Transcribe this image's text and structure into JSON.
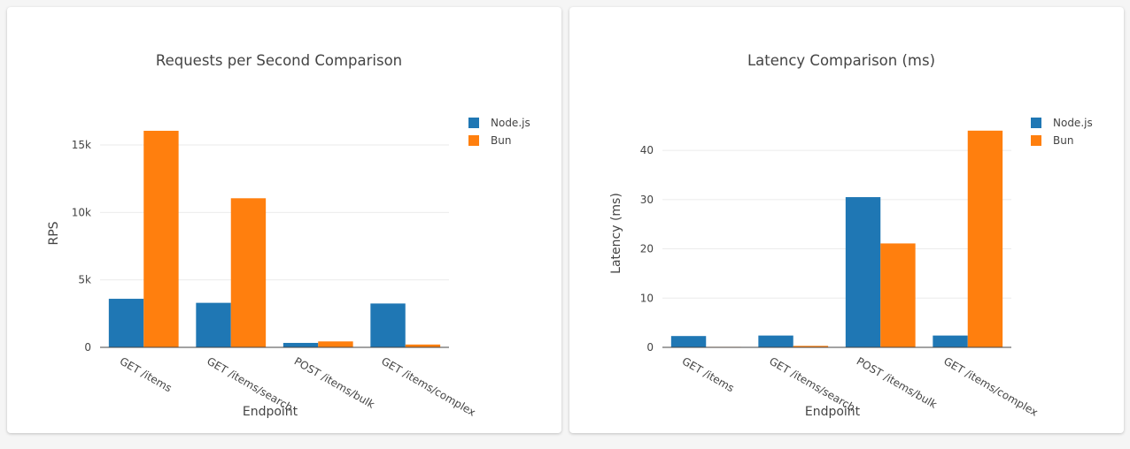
{
  "colors": {
    "nodejs": "#1f77b4",
    "bun": "#ff7f0e",
    "grid": "#ebebeb",
    "axis": "#444444"
  },
  "chart_data": [
    {
      "type": "bar",
      "title": "Requests per Second Comparison",
      "xlabel": "Endpoint",
      "ylabel": "RPS",
      "categories": [
        "GET /items",
        "GET /items/search",
        "POST /items/bulk",
        "GET /items/complex"
      ],
      "series": [
        {
          "name": "Node.js",
          "values": [
            3600,
            3300,
            330,
            3250
          ]
        },
        {
          "name": "Bun",
          "values": [
            16050,
            11050,
            440,
            210
          ]
        }
      ],
      "ylim": [
        0,
        16900
      ],
      "yticks": [
        0,
        5000,
        10000,
        15000
      ],
      "ytick_labels": [
        "0",
        "5k",
        "10k",
        "15k"
      ],
      "grid": true,
      "legend": "top-right"
    },
    {
      "type": "bar",
      "title": "Latency Comparison (ms)",
      "xlabel": "Endpoint",
      "ylabel": "Latency (ms)",
      "categories": [
        "GET /items",
        "GET /items/search",
        "POST /items/bulk",
        "GET /items/complex"
      ],
      "series": [
        {
          "name": "Node.js",
          "values": [
            2.3,
            2.4,
            30.5,
            2.4
          ]
        },
        {
          "name": "Bun",
          "values": [
            0.1,
            0.3,
            21.1,
            44.0
          ]
        }
      ],
      "ylim": [
        0,
        46.3
      ],
      "yticks": [
        0,
        10,
        20,
        30,
        40
      ],
      "ytick_labels": [
        "0",
        "10",
        "20",
        "30",
        "40"
      ],
      "grid": true,
      "legend": "top-right"
    }
  ]
}
